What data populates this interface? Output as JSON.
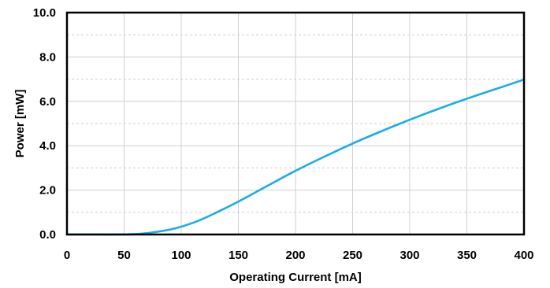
{
  "chart_data": {
    "type": "line",
    "xlabel": "Operating Current [mA]",
    "ylabel": "Power [mW]",
    "xlim": [
      0,
      400
    ],
    "ylim": [
      0,
      10
    ],
    "x_ticks": [
      "0",
      "50",
      "100",
      "150",
      "200",
      "250",
      "300",
      "350",
      "400"
    ],
    "y_ticks": [
      "0.0",
      "2.0",
      "4.0",
      "6.0",
      "8.0",
      "10.0"
    ],
    "grid": true,
    "series": [
      {
        "color": "#1aaee5",
        "x": [
          0,
          25,
          50,
          60,
          70,
          80,
          90,
          100,
          110,
          120,
          130,
          140,
          150,
          160,
          175,
          200,
          225,
          250,
          275,
          300,
          325,
          350,
          375,
          400
        ],
        "y": [
          0.0,
          0.0,
          0.0,
          0.02,
          0.06,
          0.13,
          0.22,
          0.35,
          0.52,
          0.73,
          0.97,
          1.22,
          1.48,
          1.76,
          2.18,
          2.87,
          3.5,
          4.1,
          4.65,
          5.17,
          5.66,
          6.12,
          6.55,
          6.98
        ]
      }
    ]
  }
}
